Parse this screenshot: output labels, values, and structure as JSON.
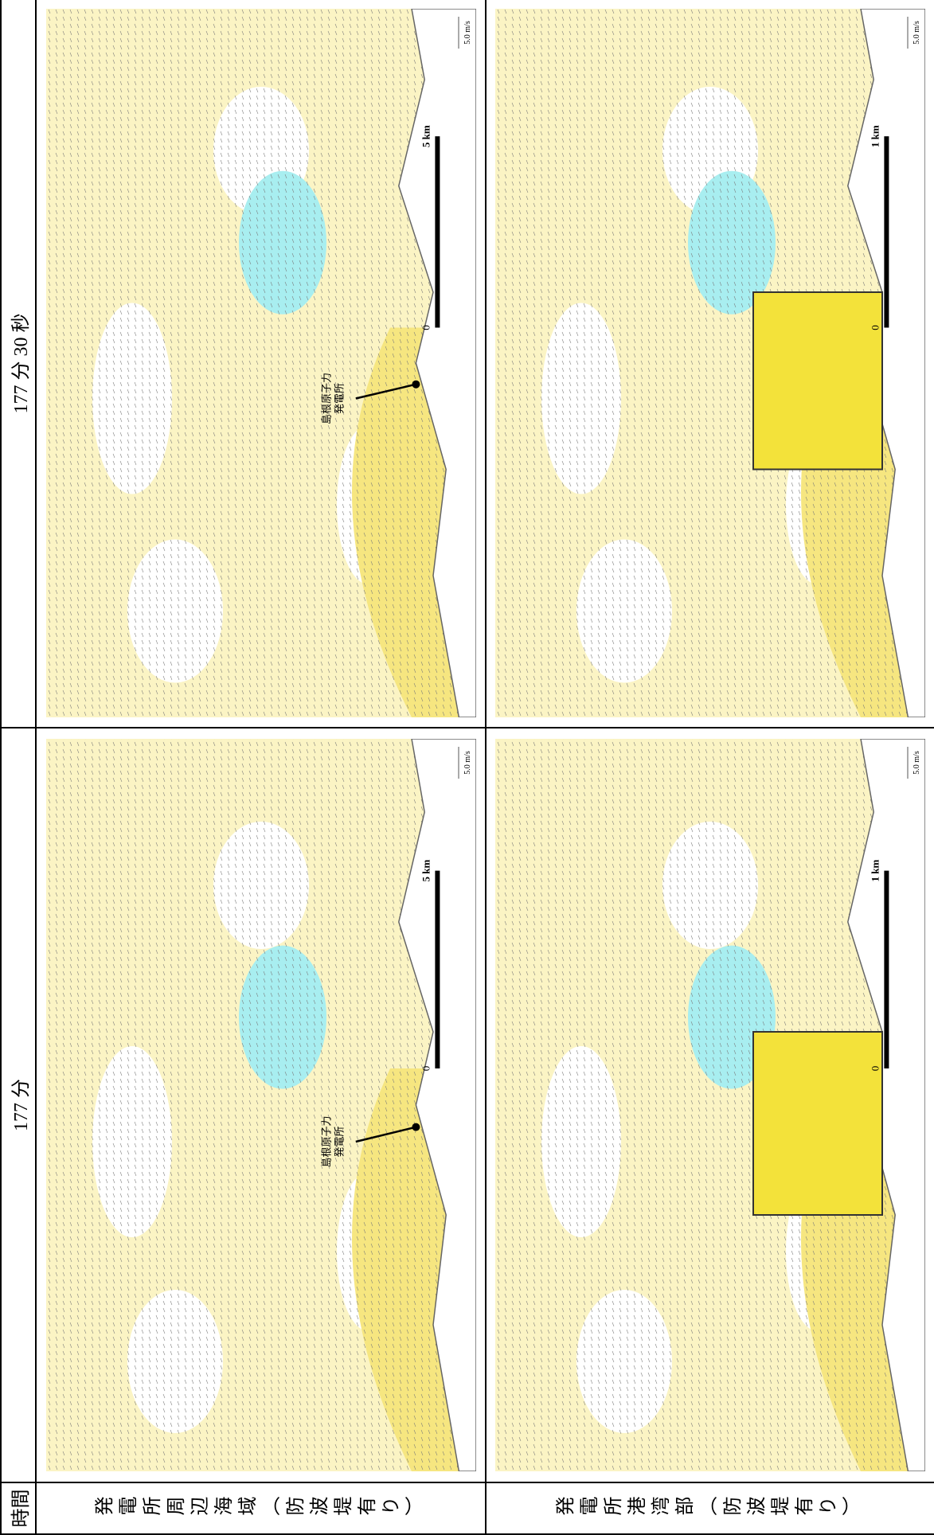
{
  "header": {
    "time_label": "時間",
    "columns": [
      "177 分",
      "177 分 30 秒"
    ]
  },
  "rows": [
    {
      "label": "発電所周辺海域（防波堤有り）",
      "maps": [
        {
          "plant_label": [
            "島根原子力",
            "発電所"
          ],
          "scale_start": "0",
          "scale_end": "5 km",
          "velocity_scale": "5.0 m/s"
        },
        {
          "plant_label": [
            "島根原子力",
            "発電所"
          ],
          "scale_start": "0",
          "scale_end": "5 km",
          "velocity_scale": "5.0 m/s"
        }
      ]
    },
    {
      "label": "発電所港湾部（防波堤有り）",
      "maps": [
        {
          "scale_start": "0",
          "scale_end": "1 km",
          "velocity_scale": "5.0 m/s"
        },
        {
          "scale_start": "0",
          "scale_end": "1 km",
          "velocity_scale": "5.0 m/s"
        }
      ]
    }
  ]
}
